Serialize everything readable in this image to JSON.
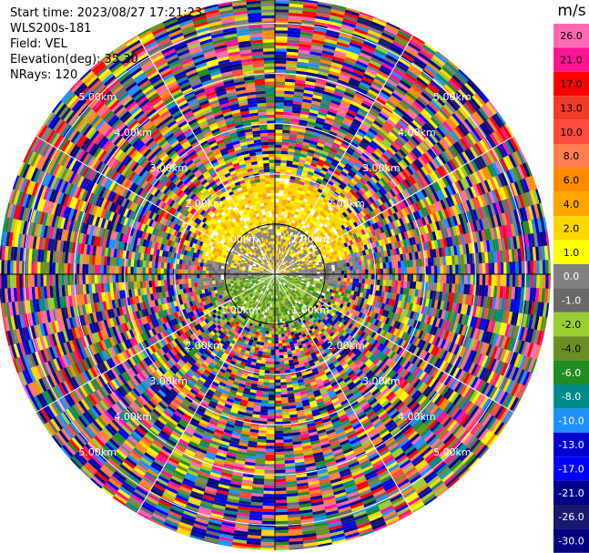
{
  "header": {
    "start_time": "Start time: 2023/08/27 17:21:23",
    "instrument": "WLS200s-181",
    "field": "Field: VEL",
    "elevation": "Elevation(deg): 35.30",
    "nrays": "NRays: 120"
  },
  "chart_data": {
    "type": "heatmap",
    "projection": "polar PPI",
    "colorbar_unit": "m/s",
    "colorbar_labels": [
      "26.0",
      "21.0",
      "17.0",
      "13.0",
      "10.0",
      "8.0",
      "6.0",
      "4.0",
      "2.0",
      "1.0",
      "0.0",
      "-1.0",
      "-2.0",
      "-4.0",
      "-6.0",
      "-8.0",
      "-10.0",
      "-13.0",
      "-17.0",
      "-21.0",
      "-26.0",
      "-30.0"
    ],
    "colorbar_colors": [
      "#ff69b4",
      "#ff1493",
      "#ff0000",
      "#f03c28",
      "#ff4a3f",
      "#ff7f50",
      "#ff8c00",
      "#ffa500",
      "#ffd700",
      "#ffff00",
      "#808080",
      "#696969",
      "#9acd32",
      "#6b8e23",
      "#228b22",
      "#008b8b",
      "#1e90ff",
      "#0000cd",
      "#0000ff",
      "#00008b",
      "#191970",
      "#000080"
    ],
    "range_rings_km": [
      1.0,
      2.0,
      3.0,
      4.0,
      5.0
    ],
    "ring_labels": [
      "1.00km",
      "2.00km",
      "3.00km",
      "4.00km",
      "5.00km"
    ],
    "nrays": 120,
    "inner_pattern": {
      "north": "yellow (2.0 to 4.0 m/s)",
      "center": "grey (-1.0 to 1.0 m/s)",
      "south": "olive green (-2.0 to -4.0 m/s)",
      "outer": "noisy random velocities"
    }
  }
}
